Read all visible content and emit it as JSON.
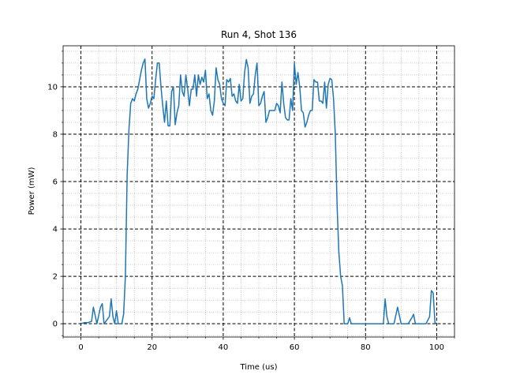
{
  "chart_data": {
    "type": "line",
    "title": "Run 4, Shot 136",
    "x_label": "Time (us)",
    "y_label": "Power (mW)",
    "x": [
      0,
      1,
      2,
      3,
      3.5,
      4.5,
      5.5,
      6,
      6.5,
      8,
      8.5,
      9,
      9.5,
      10,
      10.5,
      11.5,
      12,
      12.5,
      13,
      13.5,
      14,
      14.5,
      15,
      15.5,
      16,
      16.5,
      17,
      17.5,
      18,
      18.5,
      19,
      19.5,
      20,
      20.5,
      21,
      21.5,
      22,
      22.5,
      23,
      23.5,
      24,
      24.5,
      25,
      25.5,
      26,
      26.5,
      27,
      27.5,
      28,
      28.5,
      29,
      29.5,
      30,
      30.5,
      31,
      31.5,
      32,
      32.5,
      33,
      33.5,
      34,
      34.5,
      35,
      35.5,
      36,
      36.5,
      37,
      37.5,
      38,
      38.5,
      39,
      39.5,
      40,
      40.5,
      41,
      41.5,
      42,
      42.5,
      43,
      43.5,
      44,
      44.5,
      45,
      45.5,
      46,
      46.5,
      47,
      47.5,
      48,
      48.5,
      49,
      49.5,
      50,
      50.5,
      51,
      51.5,
      52,
      52.5,
      53,
      54,
      54.5,
      55,
      55.5,
      56,
      56.5,
      57,
      57.5,
      58,
      58.5,
      59,
      59.5,
      60,
      60.5,
      61,
      61.5,
      62,
      62.5,
      63,
      63.5,
      64,
      64.5,
      65,
      65.5,
      66,
      66.5,
      67,
      67.5,
      68,
      68.5,
      69,
      69.5,
      70,
      70.5,
      71,
      71.5,
      72,
      72.5,
      73,
      73.5,
      74,
      75,
      75.5,
      76,
      77,
      80,
      84,
      85,
      85.5,
      86,
      86.5,
      88,
      89,
      90,
      92,
      93,
      93.5,
      94,
      97,
      98,
      98.5,
      99,
      99.5,
      100
    ],
    "series": [
      {
        "name": "Power",
        "color": "#1f77b4",
        "values": [
          0,
          0.05,
          0.05,
          0.1,
          0.7,
          0,
          0.7,
          0.85,
          0,
          0.3,
          1.05,
          0.3,
          0,
          0.55,
          0,
          0,
          0.4,
          2,
          6.3,
          8.2,
          9.3,
          9.5,
          9.4,
          9.7,
          9.9,
          10.3,
          10.7,
          11.0,
          11.17,
          9.5,
          9.1,
          9.3,
          9.6,
          9.5,
          10.3,
          11.0,
          11.0,
          10.0,
          9.2,
          8.5,
          9.4,
          8.35,
          8.35,
          9.8,
          10.0,
          8.4,
          8.9,
          9.2,
          10.5,
          9.8,
          9.6,
          10.5,
          9.9,
          9.2,
          9.9,
          9.9,
          10.5,
          9.6,
          10.5,
          10.1,
          10.4,
          10.2,
          10.7,
          9.5,
          9.7,
          9.0,
          8.8,
          9.4,
          10.8,
          10.3,
          10.1,
          9.5,
          9.3,
          9.2,
          10.3,
          10.2,
          10.35,
          9.6,
          9.7,
          9.4,
          9.3,
          10.1,
          9.4,
          9.5,
          10.6,
          11.15,
          10.8,
          9.3,
          9.6,
          9.7,
          10.5,
          11.0,
          9.2,
          9.3,
          9.6,
          9.8,
          8.5,
          8.7,
          9.0,
          9.0,
          9.0,
          9.3,
          9.2,
          8.9,
          10.2,
          9.3,
          8.7,
          8.6,
          8.6,
          9.5,
          9.0,
          11.0,
          10.1,
          10.6,
          10.0,
          9.0,
          8.9,
          8.3,
          8.5,
          8.8,
          9.0,
          9.0,
          10.3,
          10.2,
          10.2,
          9.4,
          9.4,
          9.3,
          10.2,
          9.1,
          10.1,
          10.35,
          10.3,
          9.5,
          8.0,
          5.0,
          3.0,
          2.0,
          1.6,
          0,
          0,
          0.25,
          0,
          0,
          0,
          0,
          0,
          1.05,
          0.3,
          0,
          0,
          0.7,
          0,
          0,
          0.25,
          0.4,
          0,
          0,
          0.3,
          1.4,
          1.3,
          0.05,
          0
        ]
      }
    ],
    "xlim": [
      -5,
      105
    ],
    "ylim": [
      -0.56,
      11.73
    ],
    "xticks": [
      0,
      20,
      40,
      60,
      80,
      100
    ],
    "yticks": [
      0,
      2,
      4,
      6,
      8,
      10
    ],
    "xticks_minor": [
      -5,
      5,
      10,
      15,
      25,
      30,
      35,
      45,
      50,
      55,
      65,
      70,
      75,
      85,
      90,
      95,
      105
    ],
    "yticks_minor": [
      -0.5,
      0.5,
      1,
      1.5,
      2.5,
      3,
      3.5,
      4.5,
      5,
      5.5,
      6.5,
      7,
      7.5,
      8.5,
      9,
      9.5,
      10.5,
      11,
      11.5
    ],
    "grid": true
  }
}
